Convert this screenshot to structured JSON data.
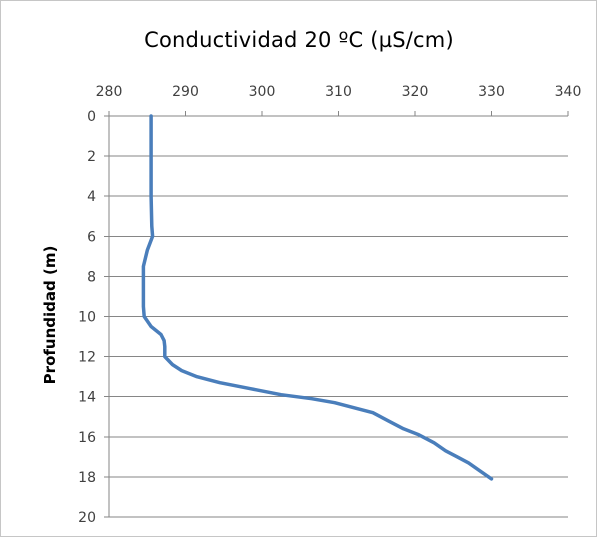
{
  "chart_data": {
    "type": "line",
    "title": "Conductividad 20 ºC (µS/cm)",
    "xlabel": "",
    "ylabel": "Profundidad (m)",
    "xlim": [
      280,
      340
    ],
    "ylim": [
      0,
      20
    ],
    "y_inverted": true,
    "x_axis_position": "top",
    "x_ticks": [
      280,
      290,
      300,
      310,
      320,
      330,
      340
    ],
    "y_ticks": [
      0,
      2,
      4,
      6,
      8,
      10,
      12,
      14,
      16,
      18,
      20
    ],
    "grid": "horizontal",
    "legend": "none",
    "series": [
      {
        "color": "#4a7ebb",
        "points": [
          [
            285.5,
            0
          ],
          [
            285.5,
            2
          ],
          [
            285.5,
            4
          ],
          [
            285.6,
            5.5
          ],
          [
            285.7,
            6
          ],
          [
            285.0,
            6.7
          ],
          [
            284.5,
            7.5
          ],
          [
            284.5,
            8.5
          ],
          [
            284.5,
            9.5
          ],
          [
            284.6,
            10
          ],
          [
            285.5,
            10.5
          ],
          [
            286.8,
            10.9
          ],
          [
            287.2,
            11.2
          ],
          [
            287.3,
            11.5
          ],
          [
            287.3,
            12
          ],
          [
            288.3,
            12.4
          ],
          [
            289.5,
            12.7
          ],
          [
            291.5,
            13
          ],
          [
            294.5,
            13.3
          ],
          [
            298.5,
            13.6
          ],
          [
            302.5,
            13.9
          ],
          [
            306.5,
            14.1
          ],
          [
            309.5,
            14.3
          ],
          [
            312.5,
            14.6
          ],
          [
            314.5,
            14.8
          ],
          [
            316.5,
            15.2
          ],
          [
            318.5,
            15.6
          ],
          [
            320.5,
            15.9
          ],
          [
            322.5,
            16.3
          ],
          [
            324,
            16.7
          ],
          [
            325.5,
            17.0
          ],
          [
            327,
            17.3
          ],
          [
            328.5,
            17.7
          ],
          [
            330.0,
            18.1
          ]
        ]
      }
    ]
  }
}
